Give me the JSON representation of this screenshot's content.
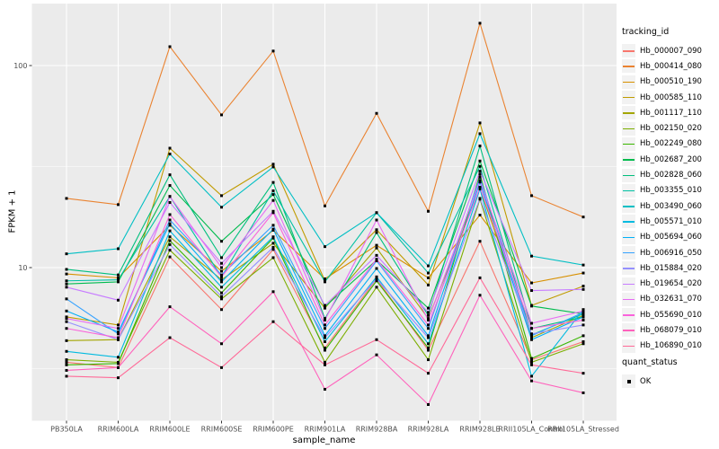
{
  "chart_data": {
    "type": "line",
    "title": "",
    "xlabel": "sample_name",
    "ylabel": "FPKM + 1",
    "y_scale": "log10",
    "y_ticks": [
      10,
      100
    ],
    "y_minor_ticks": [
      3.162,
      31.62
    ],
    "ylim": [
      1.7,
      196
    ],
    "grid": true,
    "legend_position": "right",
    "legend_title": "tracking_id",
    "legend2_title": "quant_status",
    "legend2_items": [
      "OK"
    ],
    "marker": "square",
    "categories": [
      "PB350LA",
      "RRIM600LA",
      "RRIM600LE",
      "RRIM600SE",
      "RRIM600PE",
      "RRIM901LA",
      "RRIM928BA",
      "RRIM928LA",
      "RRIM928LE",
      "RRII105LA_Control",
      "RRII105LA_Stressed"
    ],
    "series": [
      {
        "name": "Hb_000007_090",
        "color": "#F8766D",
        "values": [
          3.4,
          3.2,
          11.3,
          6.2,
          12.3,
          4.0,
          8.8,
          3.9,
          13.5,
          3.5,
          4.3
        ]
      },
      {
        "name": "Hb_000414_080",
        "color": "#EA8331",
        "values": [
          22,
          20.5,
          124,
          57,
          118,
          20.2,
          58,
          19,
          162,
          22.7,
          17.8
        ]
      },
      {
        "name": "Hb_000510_190",
        "color": "#D89000",
        "values": [
          9.3,
          8.9,
          16.2,
          9.6,
          15.3,
          8.8,
          12.9,
          8.9,
          18.2,
          8.4,
          9.4
        ]
      },
      {
        "name": "Hb_000585_110",
        "color": "#C09B00",
        "values": [
          5.7,
          5.2,
          39,
          22.7,
          32.5,
          8.6,
          15.4,
          8.2,
          52,
          6.5,
          8.1
        ]
      },
      {
        "name": "Hb_001117_110",
        "color": "#A3A500",
        "values": [
          4.35,
          4.4,
          14.2,
          8.7,
          13.2,
          6.3,
          12.5,
          5.6,
          24.7,
          4.5,
          5.8
        ]
      },
      {
        "name": "Hb_002150_020",
        "color": "#7CAE00",
        "values": [
          3.5,
          3.4,
          12.2,
          7.0,
          11.2,
          3.4,
          8.0,
          3.5,
          21.8,
          3.4,
          4.2
        ]
      },
      {
        "name": "Hb_002249_080",
        "color": "#39B600",
        "values": [
          3.3,
          3.35,
          13.6,
          7.5,
          14.0,
          3.9,
          8.6,
          4.0,
          29,
          3.55,
          4.6
        ]
      },
      {
        "name": "Hb_002687_200",
        "color": "#00BB4E",
        "values": [
          8.3,
          8.5,
          25.5,
          13.5,
          23,
          6.4,
          10.9,
          6.3,
          33.7,
          6.45,
          5.9
        ]
      },
      {
        "name": "Hb_002828_060",
        "color": "#00BF7D",
        "values": [
          9.8,
          9.2,
          28.8,
          11.2,
          26.4,
          5.6,
          14.9,
          5.8,
          40,
          5.0,
          5.7
        ]
      },
      {
        "name": "Hb_003355_010",
        "color": "#00C1A3",
        "values": [
          8.6,
          8.7,
          22.5,
          9.0,
          24,
          8.5,
          18.7,
          9.4,
          31.7,
          4.65,
          5.9
        ]
      },
      {
        "name": "Hb_003490_060",
        "color": "#00BFC4",
        "values": [
          11.7,
          12.4,
          36.5,
          19.9,
          31.5,
          12.7,
          18.7,
          10.2,
          46,
          11.4,
          10.3
        ]
      },
      {
        "name": "Hb_005571_010",
        "color": "#00BAE0",
        "values": [
          3.85,
          3.6,
          15.2,
          8.0,
          14.2,
          4.3,
          9.0,
          4.2,
          24.5,
          2.9,
          6.2
        ]
      },
      {
        "name": "Hb_005694_060",
        "color": "#00B0F6",
        "values": [
          6.1,
          4.8,
          16.5,
          8.5,
          15.5,
          4.6,
          9.9,
          4.6,
          26.5,
          4.4,
          5.7
        ]
      },
      {
        "name": "Hb_006916_050",
        "color": "#35A2FF",
        "values": [
          7.0,
          4.7,
          17.2,
          9.2,
          16.2,
          5.0,
          10.8,
          5.0,
          28,
          4.6,
          6.0
        ]
      },
      {
        "name": "Hb_015884_020",
        "color": "#9590FF",
        "values": [
          5.4,
          4.4,
          13.0,
          7.2,
          12.6,
          4.5,
          8.8,
          4.5,
          22,
          4.7,
          5.2
        ]
      },
      {
        "name": "Hb_019654_020",
        "color": "#C77CFF",
        "values": [
          8.0,
          6.9,
          21,
          10.5,
          19,
          6.5,
          11.5,
          6.0,
          30,
          7.7,
          7.8
        ]
      },
      {
        "name": "Hb_032631_070",
        "color": "#E76BF3",
        "values": [
          5.6,
          5.0,
          22.5,
          10.0,
          21.5,
          5.5,
          17.2,
          5.5,
          27,
          5.3,
          6.1
        ]
      },
      {
        "name": "Hb_055690_010",
        "color": "#FA62DB",
        "values": [
          5.0,
          4.5,
          18.3,
          9.0,
          18.7,
          5.2,
          11.0,
          5.2,
          25,
          5.0,
          5.5
        ]
      },
      {
        "name": "Hb_068079_010",
        "color": "#FF62BC",
        "values": [
          3.1,
          3.2,
          6.4,
          4.2,
          7.6,
          2.5,
          3.7,
          2.1,
          7.3,
          2.75,
          2.4
        ]
      },
      {
        "name": "Hb_106890_010",
        "color": "#FF6A98",
        "values": [
          2.9,
          2.85,
          4.5,
          3.2,
          5.4,
          3.3,
          4.4,
          3.0,
          8.9,
          3.3,
          3.0
        ]
      }
    ],
    "colors": {
      "panel_bg": "#EBEBEB",
      "grid": "#FFFFFF",
      "point": "#000000",
      "tick_text": "#4D4D4D",
      "legend_key_bg": "#F2F2F2"
    }
  }
}
